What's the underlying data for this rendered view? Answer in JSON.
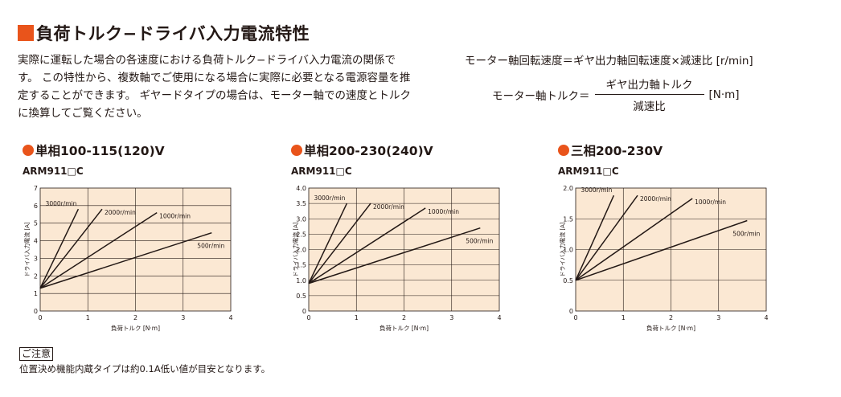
{
  "header": {
    "title": "負荷トルク−ドライバ入力電流特性"
  },
  "intro_text": "実際に運転した場合の各速度における負荷トルク−ドライバ入力電流の関係です。 この特性から、複数軸でご使用になる場合に実際に必要となる電源容量を推定することができます。 ギヤードタイプの場合は、モーター軸での速度とトルクに換算してご覧ください。",
  "formulas": {
    "speed": "モーター軸回転速度＝ギヤ出力軸回転速度×減速比 [r/min]",
    "torque_left": "モーター軸トルク＝",
    "torque_numerator": "ギヤ出力軸トルク",
    "torque_denominator": "減速比",
    "torque_unit": "[N·m]"
  },
  "caution": {
    "label": "ご注意",
    "text": "位置決め機能内蔵タイプは約0.1A低い値が目安となります。"
  },
  "colors": {
    "accent": "#e9541b",
    "plot_bg": "#fbe8d3",
    "grid": "#231815",
    "line": "#231815"
  },
  "charts": [
    {
      "heading": "単相100-115(120)V",
      "model": "ARM911□C"
    },
    {
      "heading": "単相200-230(240)V",
      "model": "ARM911□C"
    },
    {
      "heading": "三相200-230V",
      "model": "ARM911□C"
    }
  ],
  "chart_data": [
    {
      "type": "line",
      "title": "単相100-115(120)V",
      "subtitle": "ARM911□C",
      "xlabel": "負荷トルク [N·m]",
      "ylabel": "ドライバ入力電流 [A]",
      "xlim": [
        0,
        4
      ],
      "ylim": [
        0,
        7
      ],
      "xticks": [
        "0",
        "1",
        "2",
        "3",
        "4"
      ],
      "yticks": [
        "0",
        "1",
        "2",
        "3",
        "4",
        "5",
        "6",
        "7"
      ],
      "grid": true,
      "series": [
        {
          "name": "3000r/min",
          "x": [
            0,
            0.8
          ],
          "y": [
            1.3,
            5.8
          ]
        },
        {
          "name": "2000r/min",
          "x": [
            0,
            1.3
          ],
          "y": [
            1.3,
            5.8
          ]
        },
        {
          "name": "1000r/min",
          "x": [
            0,
            2.45
          ],
          "y": [
            1.3,
            5.6
          ]
        },
        {
          "name": "500r/min",
          "x": [
            0,
            3.6
          ],
          "y": [
            1.3,
            4.45
          ]
        }
      ]
    },
    {
      "type": "line",
      "title": "単相200-230(240)V",
      "subtitle": "ARM911□C",
      "xlabel": "負荷トルク [N·m]",
      "ylabel": "ドライバ入力電流 [A]",
      "xlim": [
        0,
        4
      ],
      "ylim": [
        0,
        4
      ],
      "xticks": [
        "0",
        "1",
        "2",
        "3",
        "4"
      ],
      "yticks": [
        "0",
        "0.5",
        "1.0",
        "1.5",
        "2.0",
        "2.5",
        "3.0",
        "3.5",
        "4.0"
      ],
      "grid": true,
      "series": [
        {
          "name": "3000r/min",
          "x": [
            0,
            0.8
          ],
          "y": [
            0.9,
            3.5
          ]
        },
        {
          "name": "2000r/min",
          "x": [
            0,
            1.3
          ],
          "y": [
            0.9,
            3.5
          ]
        },
        {
          "name": "1000r/min",
          "x": [
            0,
            2.45
          ],
          "y": [
            0.9,
            3.35
          ]
        },
        {
          "name": "500r/min",
          "x": [
            0,
            3.6
          ],
          "y": [
            0.9,
            2.7
          ]
        }
      ]
    },
    {
      "type": "line",
      "title": "三相200-230V",
      "subtitle": "ARM911□C",
      "xlabel": "負荷トルク [N·m]",
      "ylabel": "ドライバ入力電流 [A]",
      "xlim": [
        0,
        4
      ],
      "ylim": [
        0,
        2.0
      ],
      "xticks": [
        "0",
        "1",
        "2",
        "3",
        "4"
      ],
      "yticks": [
        "0",
        "0.5",
        "1.0",
        "1.5",
        "2.0"
      ],
      "grid": true,
      "series": [
        {
          "name": "3000r/min",
          "x": [
            0,
            0.8
          ],
          "y": [
            0.5,
            1.88
          ]
        },
        {
          "name": "2000r/min",
          "x": [
            0,
            1.3
          ],
          "y": [
            0.5,
            1.88
          ]
        },
        {
          "name": "1000r/min",
          "x": [
            0,
            2.45
          ],
          "y": [
            0.5,
            1.83
          ]
        },
        {
          "name": "500r/min",
          "x": [
            0,
            3.6
          ],
          "y": [
            0.5,
            1.47
          ]
        }
      ]
    }
  ]
}
